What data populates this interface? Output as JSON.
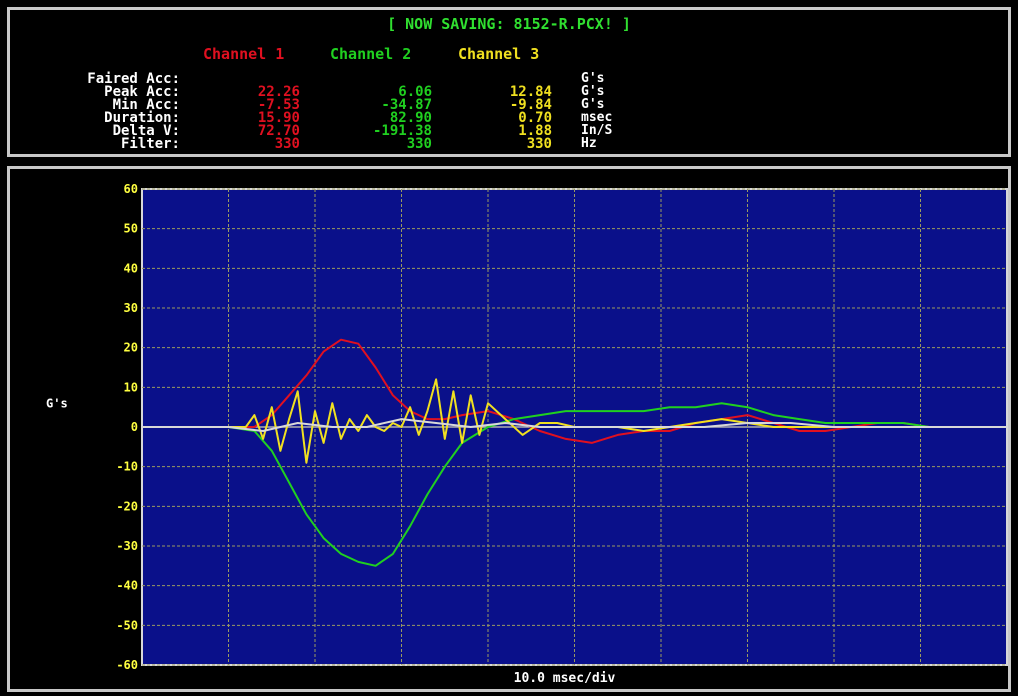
{
  "status": "[ NOW SAVING: 8152-R.PCX! ]",
  "channels": [
    {
      "label": "Channel 1",
      "color": "#e01020"
    },
    {
      "label": "Channel 2",
      "color": "#20d020"
    },
    {
      "label": "Channel 3",
      "color": "#f0e020"
    }
  ],
  "summary": {
    "rows": [
      {
        "label": "Faired Acc:",
        "values": [
          "",
          "",
          ""
        ],
        "unit": "G's"
      },
      {
        "label": "Peak Acc:",
        "values": [
          "22.26",
          "6.06",
          "12.84"
        ],
        "unit": "G's"
      },
      {
        "label": "Min Acc:",
        "values": [
          "-7.53",
          "-34.87",
          "-9.84"
        ],
        "unit": "G's"
      },
      {
        "label": "Duration:",
        "values": [
          "15.90",
          "82.90",
          "0.70"
        ],
        "unit": "msec"
      },
      {
        "label": "Delta V:",
        "values": [
          "72.70",
          "-191.38",
          "1.88"
        ],
        "unit": "In/S"
      },
      {
        "label": "Filter:",
        "values": [
          "330",
          "330",
          "330"
        ],
        "unit": "Hz"
      }
    ]
  },
  "chart_data": {
    "type": "line",
    "ylabel": "G's",
    "xlabel": "10.0 msec/div",
    "ylim": [
      -60,
      60
    ],
    "yticks": [
      60,
      50,
      40,
      30,
      20,
      10,
      0,
      -10,
      -20,
      -30,
      -40,
      -50,
      -60
    ],
    "xlim": [
      0,
      100
    ],
    "x_divisions": 10,
    "grid": true,
    "background": "#0a108a",
    "series": [
      {
        "name": "Channel 1",
        "color": "#e01020",
        "x": [
          0,
          10,
          13,
          15,
          17,
          19,
          21,
          23,
          25,
          27,
          29,
          31,
          33,
          35,
          37,
          40,
          43,
          46,
          49,
          52,
          55,
          58,
          61,
          64,
          67,
          70,
          73,
          76,
          79,
          82,
          85,
          88,
          91,
          94,
          97,
          100
        ],
        "y": [
          0,
          0,
          0,
          3,
          8,
          13,
          19,
          22,
          21,
          15,
          8,
          4,
          2,
          2,
          3,
          4,
          2,
          -1,
          -3,
          -4,
          -2,
          -1,
          -1,
          1,
          2,
          3,
          1,
          -1,
          -1,
          0,
          1,
          1,
          0,
          0,
          0,
          0
        ]
      },
      {
        "name": "Channel 2",
        "color": "#20d020",
        "x": [
          0,
          10,
          13,
          15,
          17,
          19,
          21,
          23,
          25,
          27,
          29,
          31,
          33,
          35,
          37,
          40,
          43,
          46,
          49,
          52,
          55,
          58,
          61,
          64,
          67,
          70,
          73,
          76,
          79,
          82,
          85,
          88,
          91,
          94,
          97,
          100
        ],
        "y": [
          0,
          0,
          -1,
          -6,
          -14,
          -22,
          -28,
          -32,
          -34,
          -35,
          -32,
          -25,
          -17,
          -10,
          -4,
          0,
          2,
          3,
          4,
          4,
          4,
          4,
          5,
          5,
          6,
          5,
          3,
          2,
          1,
          1,
          1,
          1,
          0,
          0,
          0,
          0
        ]
      },
      {
        "name": "Channel 3",
        "color": "#f0e020",
        "x": [
          0,
          10,
          12,
          13,
          14,
          15,
          16,
          17,
          18,
          19,
          20,
          21,
          22,
          23,
          24,
          25,
          26,
          27,
          28,
          29,
          30,
          31,
          32,
          33,
          34,
          35,
          36,
          37,
          38,
          39,
          40,
          42,
          44,
          46,
          48,
          50,
          52,
          55,
          58,
          61,
          64,
          67,
          70,
          73,
          76,
          80,
          85,
          90,
          95,
          100
        ],
        "y": [
          0,
          0,
          0,
          3,
          -3,
          5,
          -6,
          2,
          9,
          -9,
          4,
          -4,
          6,
          -3,
          2,
          -1,
          3,
          0,
          -1,
          1,
          0,
          5,
          -2,
          4,
          12,
          -3,
          9,
          -4,
          8,
          -2,
          6,
          2,
          -2,
          1,
          1,
          0,
          0,
          0,
          -1,
          0,
          1,
          2,
          1,
          0,
          0,
          0,
          0,
          0,
          0,
          0
        ]
      },
      {
        "name": "",
        "color": "#d8d8d8",
        "x": [
          0,
          10,
          14,
          18,
          22,
          26,
          30,
          34,
          38,
          42,
          46,
          50,
          55,
          60,
          65,
          70,
          75,
          80,
          85,
          90,
          95,
          100
        ],
        "y": [
          0,
          0,
          -1,
          1,
          0,
          0,
          2,
          1,
          0,
          1,
          0,
          0,
          0,
          0,
          0,
          1,
          1,
          0,
          0,
          0,
          0,
          0
        ]
      }
    ]
  }
}
